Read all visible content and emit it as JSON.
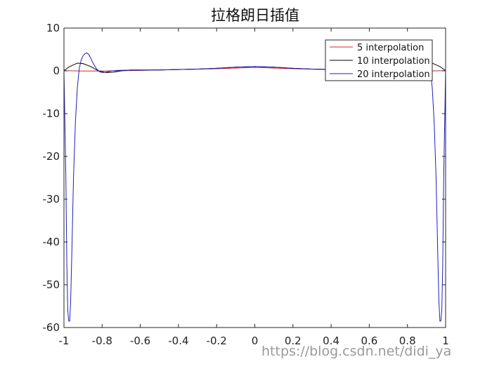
{
  "chart_data": {
    "type": "line",
    "title": "拉格朗日插值",
    "xlabel": "",
    "ylabel": "",
    "xlim": [
      -1,
      1
    ],
    "ylim": [
      -60,
      10
    ],
    "xticks": [
      -1,
      -0.8,
      -0.6,
      -0.4,
      -0.2,
      0,
      0.2,
      0.4,
      0.6,
      0.8,
      1
    ],
    "xtick_labels": [
      "-1",
      "-0.8",
      "-0.6",
      "-0.4",
      "-0.2",
      "0",
      "0.2",
      "0.4",
      "0.6",
      "0.8",
      "1"
    ],
    "yticks": [
      10,
      0,
      -10,
      -20,
      -30,
      -40,
      -50,
      -60
    ],
    "ytick_labels": [
      "10",
      "0",
      "-10",
      "-20",
      "-30",
      "-40",
      "-50",
      "-60"
    ],
    "grid": false,
    "legend_position": "top-right",
    "series": [
      {
        "name": "5 interpolation",
        "color": "#d62728",
        "x": [
          -1,
          -0.9,
          -0.8,
          -0.6,
          -0.4,
          -0.2,
          0,
          0.2,
          0.4,
          0.6,
          0.8,
          0.9,
          1
        ],
        "y": [
          0.04,
          -0.05,
          -0.05,
          0.1,
          0.3,
          0.5,
          0.8,
          0.5,
          0.3,
          0.1,
          -0.05,
          -0.05,
          0.04
        ]
      },
      {
        "name": "10 interpolation",
        "color": "#000000",
        "x": [
          -1,
          -0.97,
          -0.93,
          -0.9,
          -0.86,
          -0.82,
          -0.78,
          -0.74,
          -0.7,
          -0.65,
          -0.6,
          -0.5,
          -0.4,
          -0.3,
          -0.2,
          -0.1,
          0,
          0.1,
          0.2,
          0.3,
          0.4,
          0.5,
          0.6,
          0.65,
          0.7,
          0.74,
          0.78,
          0.82,
          0.86,
          0.9,
          0.93,
          0.97,
          1
        ],
        "y": [
          0.04,
          1.0,
          1.8,
          1.7,
          1.0,
          0.0,
          -0.4,
          -0.3,
          0.0,
          0.2,
          0.2,
          0.2,
          0.3,
          0.4,
          0.6,
          0.85,
          1.0,
          0.85,
          0.6,
          0.4,
          0.3,
          0.2,
          0.2,
          0.2,
          0.0,
          -0.3,
          -0.4,
          0.0,
          1.0,
          1.7,
          1.8,
          1.0,
          0.04
        ]
      },
      {
        "name": "20 interpolation",
        "color": "#1f1fbf",
        "x": [
          -1,
          -0.99,
          -0.985,
          -0.98,
          -0.975,
          -0.97,
          -0.965,
          -0.96,
          -0.955,
          -0.95,
          -0.94,
          -0.93,
          -0.92,
          -0.91,
          -0.9,
          -0.89,
          -0.88,
          -0.87,
          -0.86,
          -0.85,
          -0.83,
          -0.81,
          -0.79,
          -0.77,
          -0.75,
          -0.72,
          -0.68,
          -0.6,
          -0.5,
          -0.4,
          -0.3,
          -0.2,
          -0.1,
          0,
          0.1,
          0.2,
          0.3,
          0.4,
          0.5,
          0.6,
          0.68,
          0.72,
          0.75,
          0.77,
          0.79,
          0.81,
          0.83,
          0.85,
          0.86,
          0.87,
          0.88,
          0.89,
          0.9,
          0.91,
          0.92,
          0.93,
          0.94,
          0.95,
          0.955,
          0.96,
          0.965,
          0.97,
          0.975,
          0.98,
          0.985,
          0.99,
          1
        ],
        "y": [
          0.04,
          -25,
          -45,
          -56,
          -58.5,
          -58.5,
          -54,
          -45,
          -35,
          -25,
          -12,
          -4,
          0.5,
          2.5,
          3.5,
          4.0,
          4.2,
          3.8,
          3.0,
          2.0,
          0.5,
          -0.3,
          -0.4,
          -0.2,
          0.0,
          0.1,
          0.15,
          0.15,
          0.2,
          0.3,
          0.4,
          0.6,
          0.85,
          1.0,
          0.85,
          0.6,
          0.4,
          0.3,
          0.2,
          0.15,
          0.15,
          0.1,
          0.0,
          -0.2,
          -0.4,
          -0.3,
          0.5,
          2.0,
          3.0,
          3.8,
          4.2,
          4.0,
          3.5,
          2.5,
          0.5,
          -4,
          -12,
          -25,
          -35,
          -45,
          -54,
          -58.5,
          -58.5,
          -56,
          -45,
          -25,
          0.04
        ]
      }
    ]
  },
  "watermark": "https://blog.csdn.net/didi_ya"
}
